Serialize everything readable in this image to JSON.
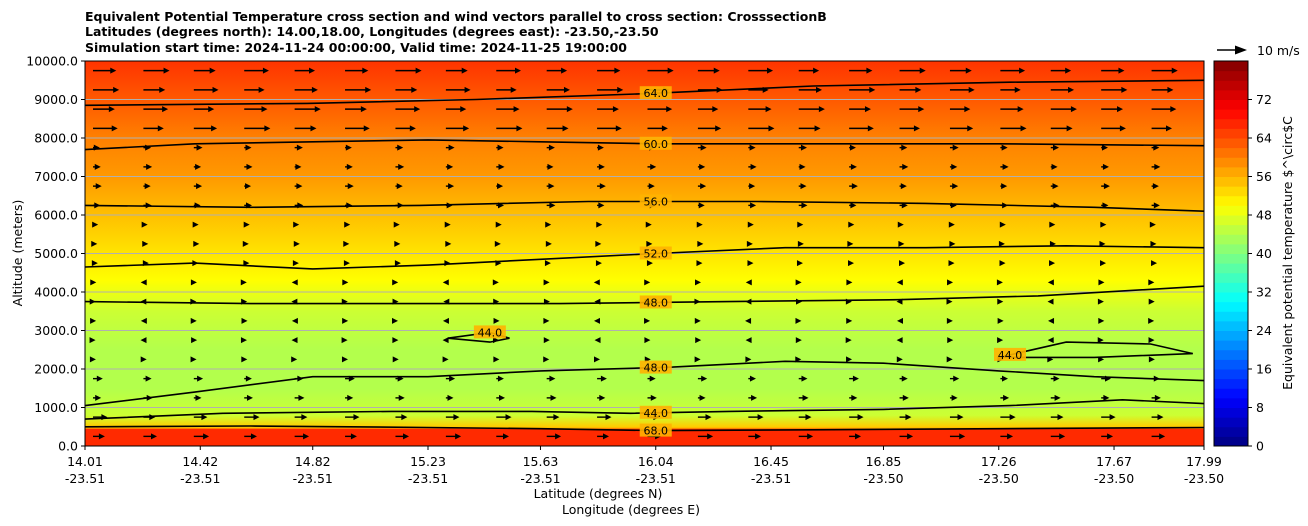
{
  "chart_data": {
    "type": "heatmap",
    "title_lines": [
      "Equivalent Potential Temperature cross section and wind vectors parallel to cross section: CrosssectionB",
      "Latitudes (degrees north): 14.00,18.00, Longitudes (degrees east): -23.50,-23.50",
      "Simulation start time: 2024-11-24 00:00:00, Valid time: 2024-11-25 19:00:00"
    ],
    "xlabel_lines": [
      "Latitude (degrees N)",
      "Longitude (degrees E)"
    ],
    "ylabel": "Altitude (meters)",
    "xlim": [
      14.01,
      17.99
    ],
    "ylim": [
      0,
      10000
    ],
    "x_ticks": [
      {
        "lat": "14.01",
        "lon": "-23.51",
        "v": 14.01
      },
      {
        "lat": "14.42",
        "lon": "-23.51",
        "v": 14.42
      },
      {
        "lat": "14.82",
        "lon": "-23.51",
        "v": 14.82
      },
      {
        "lat": "15.23",
        "lon": "-23.51",
        "v": 15.23
      },
      {
        "lat": "15.63",
        "lon": "-23.51",
        "v": 15.63
      },
      {
        "lat": "16.04",
        "lon": "-23.51",
        "v": 16.04
      },
      {
        "lat": "16.45",
        "lon": "-23.51",
        "v": 16.45
      },
      {
        "lat": "16.85",
        "lon": "-23.50",
        "v": 16.85
      },
      {
        "lat": "17.26",
        "lon": "-23.50",
        "v": 17.26
      },
      {
        "lat": "17.67",
        "lon": "-23.50",
        "v": 17.67
      },
      {
        "lat": "17.99",
        "lon": "-23.50",
        "v": 17.99
      }
    ],
    "y_ticks": [
      {
        "label": "0.0",
        "v": 0
      },
      {
        "label": "1000.0",
        "v": 1000
      },
      {
        "label": "2000.0",
        "v": 2000
      },
      {
        "label": "3000.0",
        "v": 3000
      },
      {
        "label": "4000.0",
        "v": 4000
      },
      {
        "label": "5000.0",
        "v": 5000
      },
      {
        "label": "6000.0",
        "v": 6000
      },
      {
        "label": "7000.0",
        "v": 7000
      },
      {
        "label": "8000.0",
        "v": 8000
      },
      {
        "label": "9000.0",
        "v": 9000
      },
      {
        "label": "10000.0",
        "v": 10000
      }
    ],
    "theta_e_profile": [
      {
        "alt": 0,
        "v": 66
      },
      {
        "alt": 300,
        "v": 66
      },
      {
        "alt": 500,
        "v": 54
      },
      {
        "alt": 800,
        "v": 46
      },
      {
        "alt": 1500,
        "v": 44
      },
      {
        "alt": 2500,
        "v": 44
      },
      {
        "alt": 3500,
        "v": 46
      },
      {
        "alt": 4300,
        "v": 50
      },
      {
        "alt": 5000,
        "v": 52
      },
      {
        "alt": 6000,
        "v": 55
      },
      {
        "alt": 7000,
        "v": 58
      },
      {
        "alt": 8000,
        "v": 60
      },
      {
        "alt": 9000,
        "v": 63
      },
      {
        "alt": 10000,
        "v": 66
      }
    ],
    "contours": [
      {
        "label": "64.0",
        "label_x": 16.04,
        "points": [
          [
            14.01,
            8850
          ],
          [
            14.8,
            8900
          ],
          [
            15.4,
            9000
          ],
          [
            16.0,
            9150
          ],
          [
            16.6,
            9350
          ],
          [
            17.3,
            9450
          ],
          [
            17.99,
            9500
          ]
        ]
      },
      {
        "label": "60.0",
        "label_x": 16.04,
        "points": [
          [
            14.01,
            7700
          ],
          [
            14.4,
            7850
          ],
          [
            14.82,
            7900
          ],
          [
            15.23,
            7950
          ],
          [
            15.63,
            7900
          ],
          [
            16.04,
            7850
          ],
          [
            16.6,
            7850
          ],
          [
            17.26,
            7850
          ],
          [
            17.99,
            7800
          ]
        ]
      },
      {
        "label": "56.0",
        "label_x": 16.04,
        "points": [
          [
            14.01,
            6250
          ],
          [
            14.6,
            6200
          ],
          [
            15.2,
            6250
          ],
          [
            15.8,
            6350
          ],
          [
            16.4,
            6350
          ],
          [
            17.0,
            6300
          ],
          [
            17.6,
            6200
          ],
          [
            17.99,
            6100
          ]
        ]
      },
      {
        "label": "52.0",
        "label_x": 16.04,
        "points": [
          [
            14.01,
            4650
          ],
          [
            14.4,
            4750
          ],
          [
            14.82,
            4600
          ],
          [
            15.23,
            4700
          ],
          [
            15.63,
            4850
          ],
          [
            16.04,
            5000
          ],
          [
            16.5,
            5150
          ],
          [
            17.0,
            5150
          ],
          [
            17.5,
            5200
          ],
          [
            17.99,
            5150
          ]
        ]
      },
      {
        "label": "48.0",
        "label_x": 16.04,
        "points": [
          [
            14.01,
            3750
          ],
          [
            14.6,
            3700
          ],
          [
            15.23,
            3700
          ],
          [
            15.7,
            3700
          ],
          [
            16.3,
            3750
          ],
          [
            16.9,
            3800
          ],
          [
            17.4,
            3900
          ],
          [
            17.99,
            4150
          ]
        ]
      },
      {
        "label": "48.0",
        "label_x": 16.04,
        "points": [
          [
            14.01,
            1050
          ],
          [
            14.4,
            1400
          ],
          [
            14.82,
            1800
          ],
          [
            15.23,
            1800
          ],
          [
            15.63,
            1950
          ],
          [
            16.1,
            2050
          ],
          [
            16.5,
            2200
          ],
          [
            16.85,
            2150
          ],
          [
            17.26,
            1950
          ],
          [
            17.6,
            1800
          ],
          [
            17.99,
            1700
          ]
        ]
      },
      {
        "label": "44.0",
        "label_x": 16.04,
        "points": [
          [
            14.01,
            700
          ],
          [
            14.5,
            850
          ],
          [
            15.1,
            900
          ],
          [
            15.6,
            900
          ],
          [
            15.95,
            850
          ],
          [
            16.3,
            900
          ],
          [
            16.85,
            950
          ],
          [
            17.3,
            1050
          ],
          [
            17.7,
            1200
          ],
          [
            17.99,
            1100
          ]
        ]
      },
      {
        "label": "68.0",
        "label_x": 16.04,
        "points": [
          [
            14.01,
            500
          ],
          [
            14.6,
            520
          ],
          [
            15.23,
            480
          ],
          [
            15.63,
            450
          ],
          [
            16.04,
            400
          ],
          [
            16.6,
            420
          ],
          [
            17.26,
            450
          ],
          [
            17.99,
            480
          ]
        ]
      },
      {
        "label": "44.0",
        "label_x": 15.45,
        "points": [
          [
            15.3,
            2800
          ],
          [
            15.45,
            2950
          ],
          [
            15.52,
            2800
          ],
          [
            15.45,
            2700
          ],
          [
            15.3,
            2800
          ]
        ]
      },
      {
        "label": "44.0",
        "label_x": 17.3,
        "points": [
          [
            17.26,
            2300
          ],
          [
            17.5,
            2700
          ],
          [
            17.8,
            2650
          ],
          [
            17.95,
            2400
          ],
          [
            17.6,
            2300
          ],
          [
            17.26,
            2300
          ]
        ]
      }
    ],
    "scalar_label": "Equivalent potential temperature $^\\circ$C",
    "colorbar_ticks": [
      "0",
      "8",
      "16",
      "24",
      "32",
      "40",
      "48",
      "56",
      "64",
      "72"
    ],
    "colorbar_range": [
      0,
      80
    ],
    "vector_key_label": "10 m/s",
    "colors": {
      "contour": "#000000",
      "grid": "#b0b0b0",
      "surface": "#ff2a00"
    }
  }
}
